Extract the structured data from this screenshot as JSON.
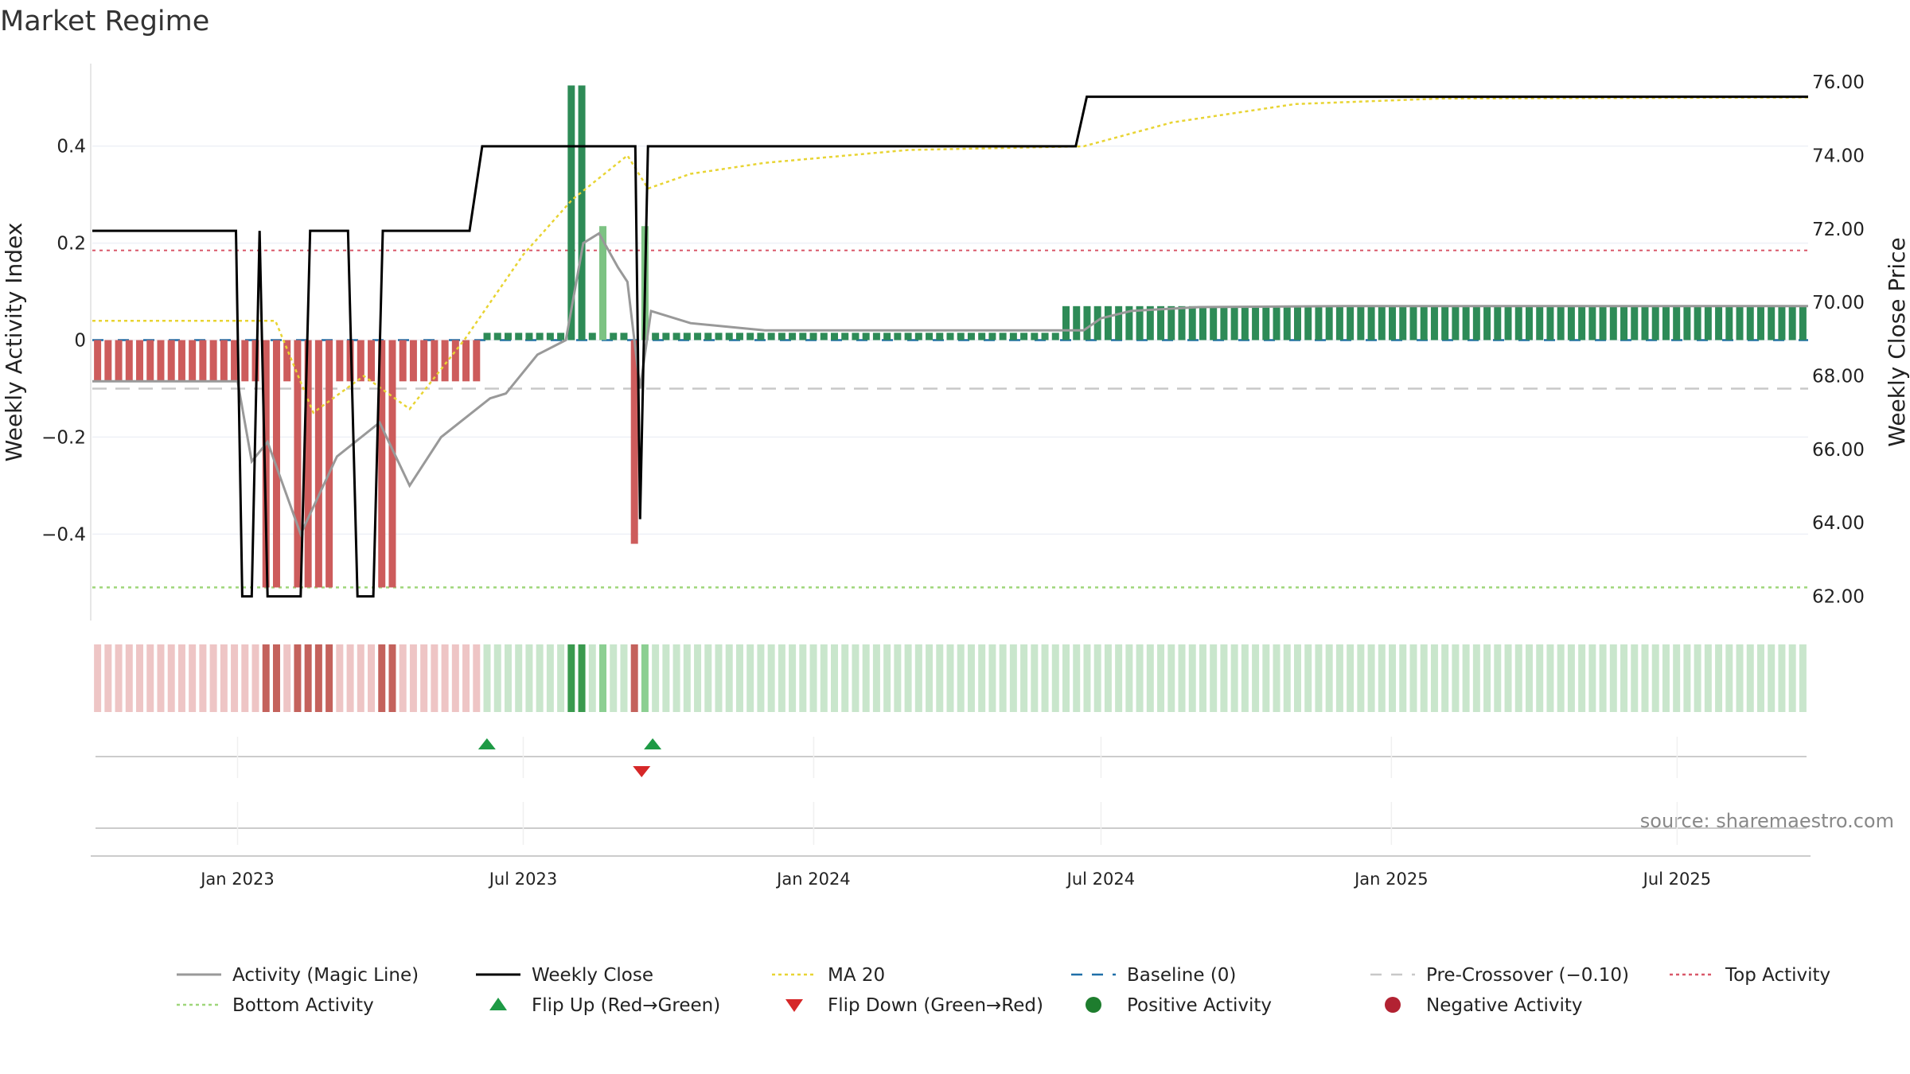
{
  "chart_data": {
    "type": "bar+line",
    "title": "Market Regime",
    "source": "source: sharemaestro.com",
    "ylabel_left": "Weekly Activity Index",
    "ylabel_right": "Weekly Close Price",
    "left_axis": {
      "ylim": [
        -0.57,
        0.57
      ],
      "ticks": [
        0.4,
        0.2,
        0,
        -0.2,
        -0.4
      ],
      "tick_labels": [
        "0.4",
        "0.2",
        "0",
        "−0.2",
        "−0.4"
      ]
    },
    "right_axis": {
      "ylim": [
        61.45,
        76.5
      ],
      "ticks": [
        76,
        74,
        72,
        70,
        68,
        66,
        64,
        62
      ],
      "tick_labels": [
        "76.00",
        "74.00",
        "72.00",
        "70.00",
        "68.00",
        "66.00",
        "64.00",
        "62.00"
      ]
    },
    "x_axis": {
      "start": "2022-10-01",
      "end": "2025-09-22",
      "ticks": [
        {
          "date": "2023-01-01",
          "label": "Jan 2023"
        },
        {
          "date": "2023-07-01",
          "label": "Jul 2023"
        },
        {
          "date": "2024-01-01",
          "label": "Jan 2024"
        },
        {
          "date": "2024-07-01",
          "label": "Jul 2024"
        },
        {
          "date": "2025-01-01",
          "label": "Jan 2025"
        },
        {
          "date": "2025-07-01",
          "label": "Jul 2025"
        }
      ]
    },
    "reference_lines": {
      "baseline": 0,
      "pre_crossover": -0.1,
      "top_activity": 0.185,
      "bottom_activity": -0.51
    },
    "activity_segments": [
      {
        "weeks": 16,
        "value": -0.085
      },
      {
        "weeks": 2,
        "value": -0.51
      },
      {
        "weeks": 1,
        "value": -0.085
      },
      {
        "weeks": 1,
        "value": -0.51
      },
      {
        "weeks": 1,
        "value": -0.51
      },
      {
        "weeks": 1,
        "value": -0.51
      },
      {
        "weeks": 1,
        "value": -0.51
      },
      {
        "weeks": 4,
        "value": -0.085
      },
      {
        "weeks": 2,
        "value": -0.51
      },
      {
        "weeks": 8,
        "value": -0.085
      },
      {
        "weeks": 8,
        "value": 0.015
      },
      {
        "weeks": 2,
        "value": 0.525
      },
      {
        "weeks": 1,
        "value": 0.015
      },
      {
        "weeks": 1,
        "value": 0.235
      },
      {
        "weeks": 2,
        "value": 0.015
      },
      {
        "weeks": 1,
        "value": -0.42
      },
      {
        "weeks": 1,
        "value": 0.235
      },
      {
        "weeks": 39,
        "value": 0.015
      },
      {
        "weeks": 71,
        "value": 0.07
      }
    ],
    "magic_line": [
      [
        "2022-10-01",
        -0.085
      ],
      [
        "2023-01-01",
        -0.085
      ],
      [
        "2023-01-10",
        -0.25
      ],
      [
        "2023-01-20",
        -0.21
      ],
      [
        "2023-02-10",
        -0.4
      ],
      [
        "2023-03-05",
        -0.24
      ],
      [
        "2023-04-01",
        -0.17
      ],
      [
        "2023-04-20",
        -0.3
      ],
      [
        "2023-05-10",
        -0.2
      ],
      [
        "2023-06-10",
        -0.12
      ],
      [
        "2023-06-20",
        -0.11
      ],
      [
        "2023-07-10",
        -0.03
      ],
      [
        "2023-07-28",
        0.0
      ],
      [
        "2023-08-08",
        0.2
      ],
      [
        "2023-08-18",
        0.22
      ],
      [
        "2023-08-30",
        0.15
      ],
      [
        "2023-09-05",
        0.12
      ],
      [
        "2023-09-13",
        -0.1
      ],
      [
        "2023-09-20",
        0.06
      ],
      [
        "2023-10-15",
        0.035
      ],
      [
        "2023-12-01",
        0.02
      ],
      [
        "2024-06-20",
        0.02
      ],
      [
        "2024-07-01",
        0.045
      ],
      [
        "2024-07-20",
        0.06
      ],
      [
        "2024-09-01",
        0.068
      ],
      [
        "2024-12-01",
        0.07
      ],
      [
        "2025-09-22",
        0.07
      ]
    ],
    "weekly_close": [
      [
        "2022-10-01",
        71.95
      ],
      [
        "2022-12-31",
        71.95
      ],
      [
        "2023-01-04",
        62.0
      ],
      [
        "2023-01-10",
        62.0
      ],
      [
        "2023-01-15",
        71.95
      ],
      [
        "2023-01-20",
        62.0
      ],
      [
        "2023-02-10",
        62.0
      ],
      [
        "2023-02-16",
        71.95
      ],
      [
        "2023-03-12",
        71.95
      ],
      [
        "2023-03-18",
        62.0
      ],
      [
        "2023-03-28",
        62.0
      ],
      [
        "2023-04-03",
        71.95
      ],
      [
        "2023-05-28",
        71.95
      ],
      [
        "2023-06-05",
        74.25
      ],
      [
        "2023-09-10",
        74.25
      ],
      [
        "2023-09-13",
        64.1
      ],
      [
        "2023-09-18",
        74.25
      ],
      [
        "2024-06-15",
        74.25
      ],
      [
        "2024-06-22",
        75.6
      ],
      [
        "2025-09-22",
        75.6
      ]
    ],
    "ma20": [
      [
        "2022-10-01",
        69.5
      ],
      [
        "2023-01-25",
        69.5
      ],
      [
        "2023-02-18",
        67.0
      ],
      [
        "2023-03-22",
        68.0
      ],
      [
        "2023-04-20",
        67.1
      ],
      [
        "2023-05-25",
        69.0
      ],
      [
        "2023-07-01",
        71.3
      ],
      [
        "2023-08-01",
        72.8
      ],
      [
        "2023-09-05",
        74.0
      ],
      [
        "2023-09-18",
        73.1
      ],
      [
        "2023-10-15",
        73.5
      ],
      [
        "2023-12-01",
        73.8
      ],
      [
        "2024-03-01",
        74.15
      ],
      [
        "2024-06-20",
        74.25
      ],
      [
        "2024-08-15",
        74.9
      ],
      [
        "2024-11-01",
        75.4
      ],
      [
        "2025-02-01",
        75.55
      ],
      [
        "2025-09-22",
        75.58
      ]
    ],
    "flips": [
      {
        "date": "2023-06-08",
        "type": "up"
      },
      {
        "date": "2023-09-14",
        "type": "down"
      },
      {
        "date": "2023-09-21",
        "type": "up"
      }
    ],
    "legend": [
      {
        "label": "Activity (Magic Line)",
        "kind": "line",
        "color": "#999999"
      },
      {
        "label": "Weekly Close",
        "kind": "line",
        "color": "#000000"
      },
      {
        "label": "MA 20",
        "kind": "dotted",
        "color": "#e8d433"
      },
      {
        "label": "Baseline (0)",
        "kind": "dashed",
        "color": "#1f6fa8"
      },
      {
        "label": "Pre-Crossover (−0.10)",
        "kind": "dashed",
        "color": "#c8c8c8"
      },
      {
        "label": "Top Activity",
        "kind": "dotted",
        "color": "#d9596a"
      },
      {
        "label": "Bottom Activity",
        "kind": "dotted",
        "color": "#9fd67a"
      },
      {
        "label": "Flip Up (Red→Green)",
        "kind": "tri-up",
        "color": "#1e9a45"
      },
      {
        "label": "Flip Down (Green→Red)",
        "kind": "tri-down",
        "color": "#d62728"
      },
      {
        "label": "Positive Activity",
        "kind": "dot",
        "color": "#1e7d2e"
      },
      {
        "label": "Negative Activity",
        "kind": "dot",
        "color": "#b22232"
      }
    ],
    "colors": {
      "pos_bar": "#2e8b57",
      "pos_bar_light": "#7dc383",
      "neg_bar": "#cd5c5c",
      "neg_bar_light": "#e59a9a",
      "strip_pos": "#c9e6cc",
      "strip_pos_strong": "#3a9a4e",
      "strip_pos_mid": "#8ccf92",
      "strip_neg": "#eec5c5",
      "strip_neg_strong": "#c4625c"
    }
  }
}
